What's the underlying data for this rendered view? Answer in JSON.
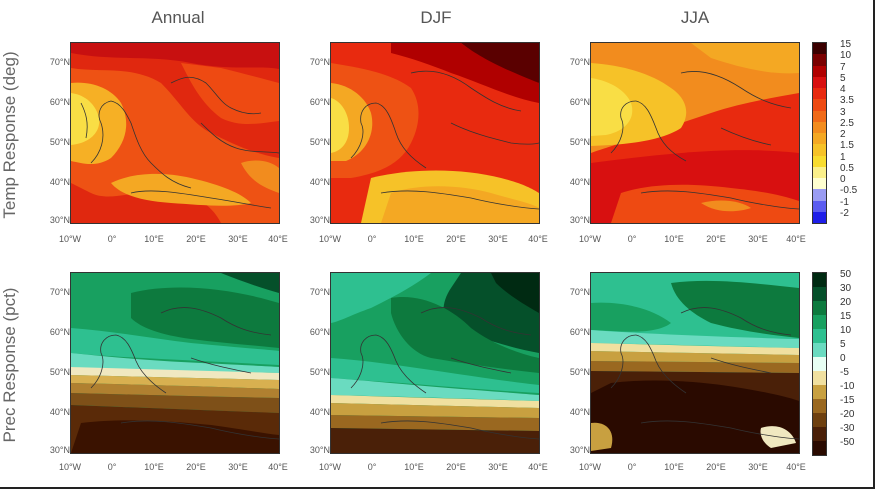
{
  "columns": [
    "Annual",
    "DJF",
    "JJA"
  ],
  "rows": [
    "Temp Response (deg)",
    "Prec Response (pct)"
  ],
  "lat_ticks": [
    "70°N",
    "60°N",
    "50°N",
    "40°N",
    "30°N"
  ],
  "lon_ticks": [
    "10°W",
    "0°",
    "10°E",
    "20°E",
    "30°E",
    "40°E"
  ],
  "temp_colorbar": {
    "labels": [
      "15",
      "10",
      "7",
      "5",
      "4",
      "3.5",
      "3",
      "2.5",
      "2",
      "1.5",
      "1",
      "0.5",
      "0",
      "-0.5",
      "-1",
      "-2"
    ],
    "colors": [
      "#3b0000",
      "#7a0000",
      "#b00000",
      "#d81010",
      "#e82a0f",
      "#ee4a12",
      "#f06a18",
      "#f28c1e",
      "#f4a823",
      "#f6c228",
      "#f8dc2e",
      "#fbf08a",
      "#ffffd0",
      "#9a9cf2",
      "#5b5cf0",
      "#1e1ee8"
    ]
  },
  "prec_colorbar": {
    "labels": [
      "50",
      "30",
      "20",
      "15",
      "10",
      "5",
      "0",
      "-5",
      "-10",
      "-15",
      "-20",
      "-30",
      "-50"
    ],
    "colors": [
      "#002a12",
      "#05502a",
      "#0d7a3e",
      "#18a060",
      "#2ec090",
      "#6adbc0",
      "#e8fff4",
      "#f0e0a0",
      "#c8a040",
      "#9a6820",
      "#6e4010",
      "#4a2008",
      "#2a0a00"
    ]
  }
}
